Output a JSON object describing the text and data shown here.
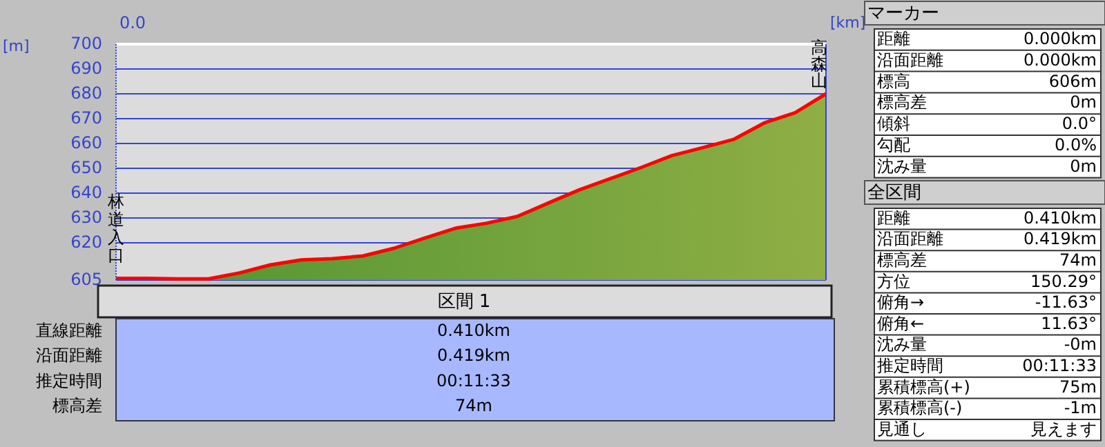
{
  "chart_data": [
    {
      "type": "area",
      "ylabel": "[m]",
      "ylim": [
        605,
        700
      ],
      "yticks": [
        605,
        620,
        630,
        640,
        650,
        660,
        670,
        680,
        690,
        700
      ],
      "grid": "y",
      "categories": [
        null,
        null,
        null,
        null,
        null,
        null,
        null,
        null,
        null,
        null,
        null,
        null,
        null,
        null,
        null,
        null,
        null,
        null,
        null,
        null,
        null,
        null,
        null,
        null
      ],
      "series": [
        {
          "color": "#ff0000",
          "values": [
            605.7,
            605.7,
            605.5,
            605.5,
            607.9,
            611.1,
            613.1,
            613.6,
            614.7,
            617.8,
            621.9,
            625.9,
            627.9,
            630.6,
            636,
            641.3,
            645.8,
            650.3,
            655.1,
            658.3,
            661.6,
            668.3,
            672.4,
            680
          ]
        }
      ],
      "annotations": [
        "0.0",
        "[km]",
        {
          "text": "林道入口",
          "y": 605.7
        },
        {
          "text": "高森山",
          "y": 680
        },
        "区間 1",
        "直線距離",
        "0.410km",
        "沿面距離",
        "0.419km",
        "推定時間",
        "00:11:33",
        "標高差",
        "74m"
      ]
    },
    {
      "type": "other",
      "title": "マーカー",
      "annotations": [
        "距離",
        "0.000km",
        "沿面距離",
        "0.000km",
        "標高",
        "606m",
        "標高差",
        "0m",
        "傾斜",
        "0.0°",
        "勾配",
        "0.0%",
        "沈み量",
        "0m"
      ]
    },
    {
      "type": "other",
      "title": "全区間",
      "annotations": [
        "距離",
        "0.410km",
        "沿面距離",
        "0.419km",
        "標高差",
        "74m",
        "方位",
        "150.29°",
        "俯角→",
        "-11.63°",
        "俯角←",
        "11.63°",
        "沈み量",
        "-0m",
        "推定時間",
        "00:11:33",
        "累積標高(+)",
        "75m",
        "累積標高(-)",
        "-1m",
        "見通し",
        "見えます"
      ]
    }
  ]
}
